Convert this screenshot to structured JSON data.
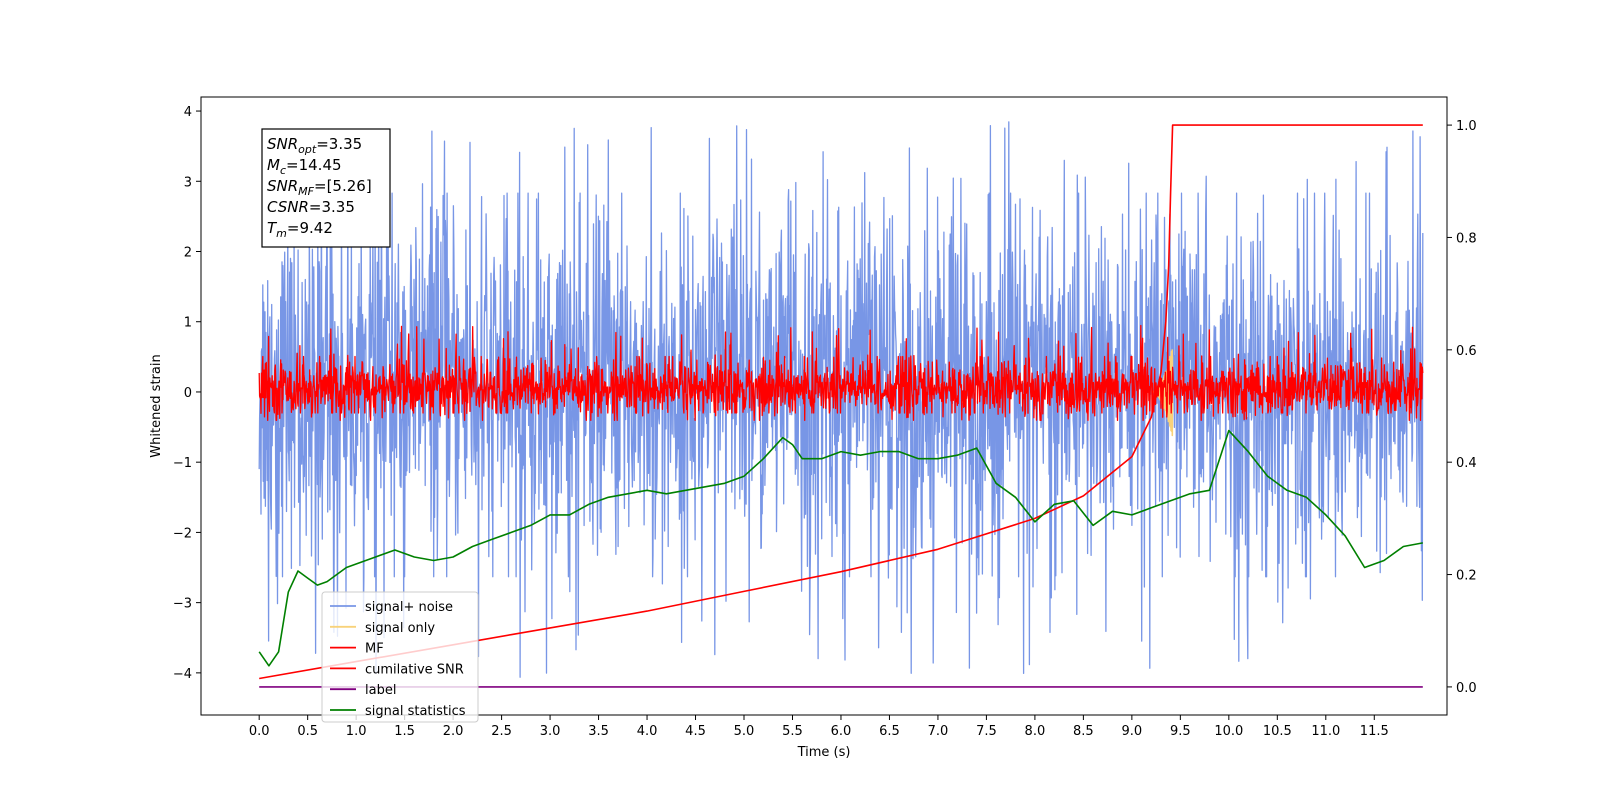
{
  "chart_data": {
    "type": "line",
    "title": "",
    "xlabel": "Time (s)",
    "ylabel": "Whitened strain",
    "ylabel_right": "",
    "xlim": [
      -0.6,
      12.25
    ],
    "ylim": [
      -4.6,
      4.2
    ],
    "ylim_right": [
      -0.05,
      1.05
    ],
    "x_ticks": [
      0.0,
      0.5,
      1.0,
      1.5,
      2.0,
      2.5,
      3.0,
      3.5,
      4.0,
      4.5,
      5.0,
      5.5,
      6.0,
      6.5,
      7.0,
      7.5,
      8.0,
      8.5,
      9.0,
      9.5,
      10.0,
      10.5,
      11.0,
      11.5
    ],
    "x_tick_labels": [
      "0.0",
      "0.5",
      "1.0",
      "1.5",
      "2.0",
      "2.5",
      "3.0",
      "3.5",
      "4.0",
      "4.5",
      "5.0",
      "5.5",
      "6.0",
      "6.5",
      "7.0",
      "7.5",
      "8.0",
      "8.5",
      "9.0",
      "9.5",
      "10.0",
      "10.5",
      "11.0",
      "11.5"
    ],
    "y_ticks": [
      -4,
      -3,
      -2,
      -1,
      0,
      1,
      2,
      3,
      4
    ],
    "y_tick_labels": [
      "−4",
      "−3",
      "−2",
      "−1",
      "0",
      "1",
      "2",
      "3",
      "4"
    ],
    "y_ticks_right": [
      0.0,
      0.2,
      0.4,
      0.6,
      0.8,
      1.0
    ],
    "y_tick_labels_right": [
      "0.0",
      "0.2",
      "0.4",
      "0.6",
      "0.8",
      "1.0"
    ],
    "grid": false,
    "legend_position": "lower-left",
    "annotation_box": {
      "lines": [
        {
          "sym": "SNR",
          "sub": "opt",
          "value": "=3.35"
        },
        {
          "sym": "M",
          "sub": "c",
          "value": "=14.45"
        },
        {
          "sym": "SNR",
          "sub": "MF",
          "value": "=[5.26]"
        },
        {
          "sym": "CSNR",
          "sub": "",
          "value": "=3.35"
        },
        {
          "sym": "T",
          "sub": "m",
          "value": "=9.42"
        }
      ]
    },
    "series": [
      {
        "name": "signal+ noise",
        "color": "#7896e6",
        "axis": "left",
        "kind": "noise",
        "x_range": [
          0.0,
          12.0
        ],
        "center": 0.0,
        "typical_range": [
          -2.0,
          2.2
        ],
        "extreme_range": [
          -4.15,
          3.85
        ]
      },
      {
        "name": "signal only",
        "color": "#f8d27a",
        "axis": "left",
        "kind": "chirp",
        "x_range": [
          9.2,
          9.42
        ],
        "peak": 0.65
      },
      {
        "name": "MF",
        "color": "#ff0000",
        "axis": "left",
        "kind": "noise",
        "x_range": [
          0.0,
          12.0
        ],
        "center": 0.0,
        "typical_range": [
          -0.3,
          0.4
        ],
        "extreme_range": [
          -0.3,
          0.95
        ]
      },
      {
        "name": "cumilative SNR",
        "color": "#ff0000",
        "axis": "right",
        "kind": "curve",
        "x": [
          0.0,
          1.0,
          2.0,
          3.0,
          4.0,
          5.0,
          6.0,
          7.0,
          8.0,
          8.5,
          9.0,
          9.2,
          9.3,
          9.35,
          9.38,
          9.4,
          9.42,
          12.0
        ],
        "values": [
          0.015,
          0.045,
          0.075,
          0.105,
          0.135,
          0.17,
          0.205,
          0.245,
          0.3,
          0.34,
          0.41,
          0.48,
          0.56,
          0.65,
          0.75,
          0.88,
          1.0,
          1.0
        ]
      },
      {
        "name": "label",
        "color": "#800080",
        "axis": "right",
        "kind": "curve",
        "x": [
          0.0,
          12.0
        ],
        "values": [
          0.0,
          0.0
        ]
      },
      {
        "name": "signal statistics",
        "color": "#008000",
        "axis": "left",
        "kind": "curve",
        "x": [
          0.0,
          0.1,
          0.2,
          0.3,
          0.4,
          0.5,
          0.6,
          0.7,
          0.8,
          0.9,
          1.0,
          1.2,
          1.4,
          1.6,
          1.8,
          2.0,
          2.2,
          2.4,
          2.6,
          2.8,
          3.0,
          3.2,
          3.4,
          3.6,
          3.8,
          4.0,
          4.2,
          4.4,
          4.6,
          4.8,
          5.0,
          5.2,
          5.4,
          5.5,
          5.6,
          5.8,
          6.0,
          6.2,
          6.4,
          6.6,
          6.8,
          7.0,
          7.2,
          7.4,
          7.6,
          7.8,
          8.0,
          8.2,
          8.4,
          8.6,
          8.8,
          9.0,
          9.2,
          9.4,
          9.6,
          9.8,
          10.0,
          10.2,
          10.4,
          10.6,
          10.8,
          11.0,
          11.2,
          11.4,
          11.6,
          11.8,
          12.0
        ],
        "values": [
          -3.7,
          -3.9,
          -3.7,
          -2.85,
          -2.55,
          -2.65,
          -2.75,
          -2.7,
          -2.6,
          -2.5,
          -2.45,
          -2.35,
          -2.25,
          -2.35,
          -2.4,
          -2.35,
          -2.2,
          -2.1,
          -2.0,
          -1.9,
          -1.75,
          -1.75,
          -1.6,
          -1.5,
          -1.45,
          -1.4,
          -1.45,
          -1.4,
          -1.35,
          -1.3,
          -1.2,
          -0.95,
          -0.65,
          -0.75,
          -0.95,
          -0.95,
          -0.85,
          -0.9,
          -0.85,
          -0.85,
          -0.95,
          -0.95,
          -0.9,
          -0.8,
          -1.3,
          -1.5,
          -1.85,
          -1.6,
          -1.55,
          -1.9,
          -1.7,
          -1.75,
          -1.65,
          -1.55,
          -1.45,
          -1.4,
          -0.55,
          -0.85,
          -1.2,
          -1.4,
          -1.5,
          -1.75,
          -2.05,
          -2.5,
          -2.4,
          -2.2,
          -2.15
        ]
      }
    ]
  }
}
